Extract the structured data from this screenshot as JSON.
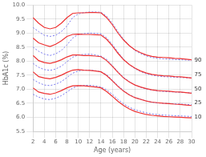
{
  "chart_data": {
    "type": "line",
    "xlabel": "Age (years)",
    "ylabel": "HbA1c (%)",
    "xlim": [
      2,
      30
    ],
    "ylim": [
      5.5,
      10.0
    ],
    "xticks": [
      2,
      4,
      6,
      8,
      10,
      12,
      14,
      16,
      18,
      20,
      22,
      24,
      26,
      28,
      30
    ],
    "yticks": [
      5.5,
      {
        "value": 6.0,
        "label": "6.0"
      },
      6.5,
      {
        "value": 7.0,
        "label": "7.0"
      },
      7.5,
      {
        "value": 8.0,
        "label": "8.0"
      },
      8.5,
      {
        "value": 9.0,
        "label": "9.0"
      },
      9.5,
      {
        "value": 10.0,
        "label": "10.0"
      }
    ],
    "grid": true,
    "x": [
      2,
      3,
      4,
      5,
      6,
      7,
      8,
      9,
      10,
      11,
      12,
      13,
      14,
      15,
      16,
      17,
      18,
      19,
      20,
      21,
      22,
      23,
      24,
      25,
      26,
      27,
      28,
      29,
      30
    ],
    "series": [
      {
        "color": "#ee3333",
        "line_style": "solid",
        "values": [
          9.55,
          9.35,
          9.2,
          9.15,
          9.2,
          9.35,
          9.55,
          9.7,
          9.72,
          9.72,
          9.73,
          9.73,
          9.72,
          9.55,
          9.3,
          9.0,
          8.75,
          8.55,
          8.4,
          8.3,
          8.22,
          8.17,
          8.14,
          8.13,
          8.12,
          8.1,
          8.09,
          8.07,
          8.05
        ]
      },
      {
        "color": "#7777ee",
        "line_style": "dotted",
        "values": [
          9.2,
          9.05,
          8.92,
          8.88,
          8.92,
          9.05,
          9.25,
          9.55,
          9.68,
          9.73,
          9.75,
          9.75,
          9.74,
          9.6,
          9.35,
          9.05,
          8.78,
          8.55,
          8.38,
          8.27,
          8.19,
          8.13,
          8.1,
          8.08,
          8.07,
          8.06,
          8.05,
          8.04,
          8.03
        ]
      },
      {
        "color": "#ee3333",
        "line_style": "solid",
        "values": [
          8.82,
          8.65,
          8.58,
          8.52,
          8.6,
          8.72,
          8.88,
          8.95,
          8.96,
          8.95,
          8.95,
          8.94,
          8.93,
          8.78,
          8.55,
          8.28,
          8.05,
          7.88,
          7.75,
          7.65,
          7.58,
          7.53,
          7.5,
          7.48,
          7.47,
          7.45,
          7.44,
          7.42,
          7.4
        ]
      },
      {
        "color": "#7777ee",
        "line_style": "dotted",
        "values": [
          8.5,
          8.35,
          8.25,
          8.2,
          8.26,
          8.38,
          8.58,
          8.82,
          8.95,
          8.98,
          9.0,
          8.99,
          8.97,
          8.83,
          8.6,
          8.32,
          8.07,
          7.88,
          7.73,
          7.63,
          7.55,
          7.5,
          7.47,
          7.45,
          7.44,
          7.43,
          7.42,
          7.41,
          7.4
        ]
      },
      {
        "color": "#ee3333",
        "line_style": "solid",
        "values": [
          8.2,
          8.02,
          7.95,
          7.92,
          7.97,
          8.05,
          8.15,
          8.22,
          8.22,
          8.2,
          8.2,
          8.18,
          8.16,
          8.02,
          7.82,
          7.6,
          7.4,
          7.26,
          7.15,
          7.08,
          7.02,
          6.98,
          6.95,
          6.94,
          6.93,
          6.91,
          6.9,
          6.88,
          6.86
        ]
      },
      {
        "color": "#7777ee",
        "line_style": "dotted",
        "values": [
          7.92,
          7.78,
          7.7,
          7.67,
          7.72,
          7.82,
          7.98,
          8.14,
          8.22,
          8.24,
          8.25,
          8.22,
          8.18,
          8.06,
          7.85,
          7.62,
          7.42,
          7.27,
          7.15,
          7.07,
          7.01,
          6.97,
          6.94,
          6.92,
          6.91,
          6.9,
          6.89,
          6.88,
          6.87
        ]
      },
      {
        "color": "#ee3333",
        "line_style": "solid",
        "values": [
          7.62,
          7.45,
          7.4,
          7.37,
          7.42,
          7.5,
          7.6,
          7.68,
          7.7,
          7.68,
          7.67,
          7.65,
          7.62,
          7.49,
          7.3,
          7.1,
          6.93,
          6.8,
          6.7,
          6.64,
          6.58,
          6.54,
          6.52,
          6.5,
          6.49,
          6.47,
          6.46,
          6.44,
          6.42
        ]
      },
      {
        "color": "#7777ee",
        "line_style": "dotted",
        "values": [
          7.35,
          7.23,
          7.15,
          7.13,
          7.18,
          7.27,
          7.42,
          7.57,
          7.65,
          7.68,
          7.68,
          7.66,
          7.62,
          7.52,
          7.33,
          7.13,
          6.95,
          6.81,
          6.71,
          6.64,
          6.58,
          6.54,
          6.51,
          6.5,
          6.49,
          6.48,
          6.47,
          6.46,
          6.45
        ]
      },
      {
        "color": "#ee3333",
        "line_style": "solid",
        "values": [
          7.05,
          6.9,
          6.85,
          6.82,
          6.87,
          6.95,
          7.05,
          7.12,
          7.13,
          7.12,
          7.1,
          7.08,
          7.05,
          6.92,
          6.75,
          6.57,
          6.42,
          6.3,
          6.21,
          6.15,
          6.1,
          6.07,
          6.05,
          6.03,
          6.02,
          6.01,
          6.0,
          5.99,
          5.98
        ]
      },
      {
        "color": "#7777ee",
        "line_style": "dotted",
        "values": [
          6.82,
          6.72,
          6.65,
          6.63,
          6.68,
          6.77,
          6.9,
          7.04,
          7.12,
          7.14,
          7.14,
          7.12,
          7.08,
          6.98,
          6.82,
          6.64,
          6.48,
          6.36,
          6.27,
          6.21,
          6.16,
          6.12,
          6.1,
          6.08,
          6.07,
          6.06,
          6.05,
          6.04,
          6.03
        ]
      }
    ],
    "annotations": [
      {
        "text": "90",
        "x": 30.5,
        "y": 8.04
      },
      {
        "text": "75",
        "x": 30.5,
        "y": 7.53
      },
      {
        "text": "50",
        "x": 30.5,
        "y": 7.0
      },
      {
        "text": "25",
        "x": 30.5,
        "y": 6.52
      },
      {
        "text": "10",
        "x": 30.5,
        "y": 6.01
      }
    ]
  }
}
